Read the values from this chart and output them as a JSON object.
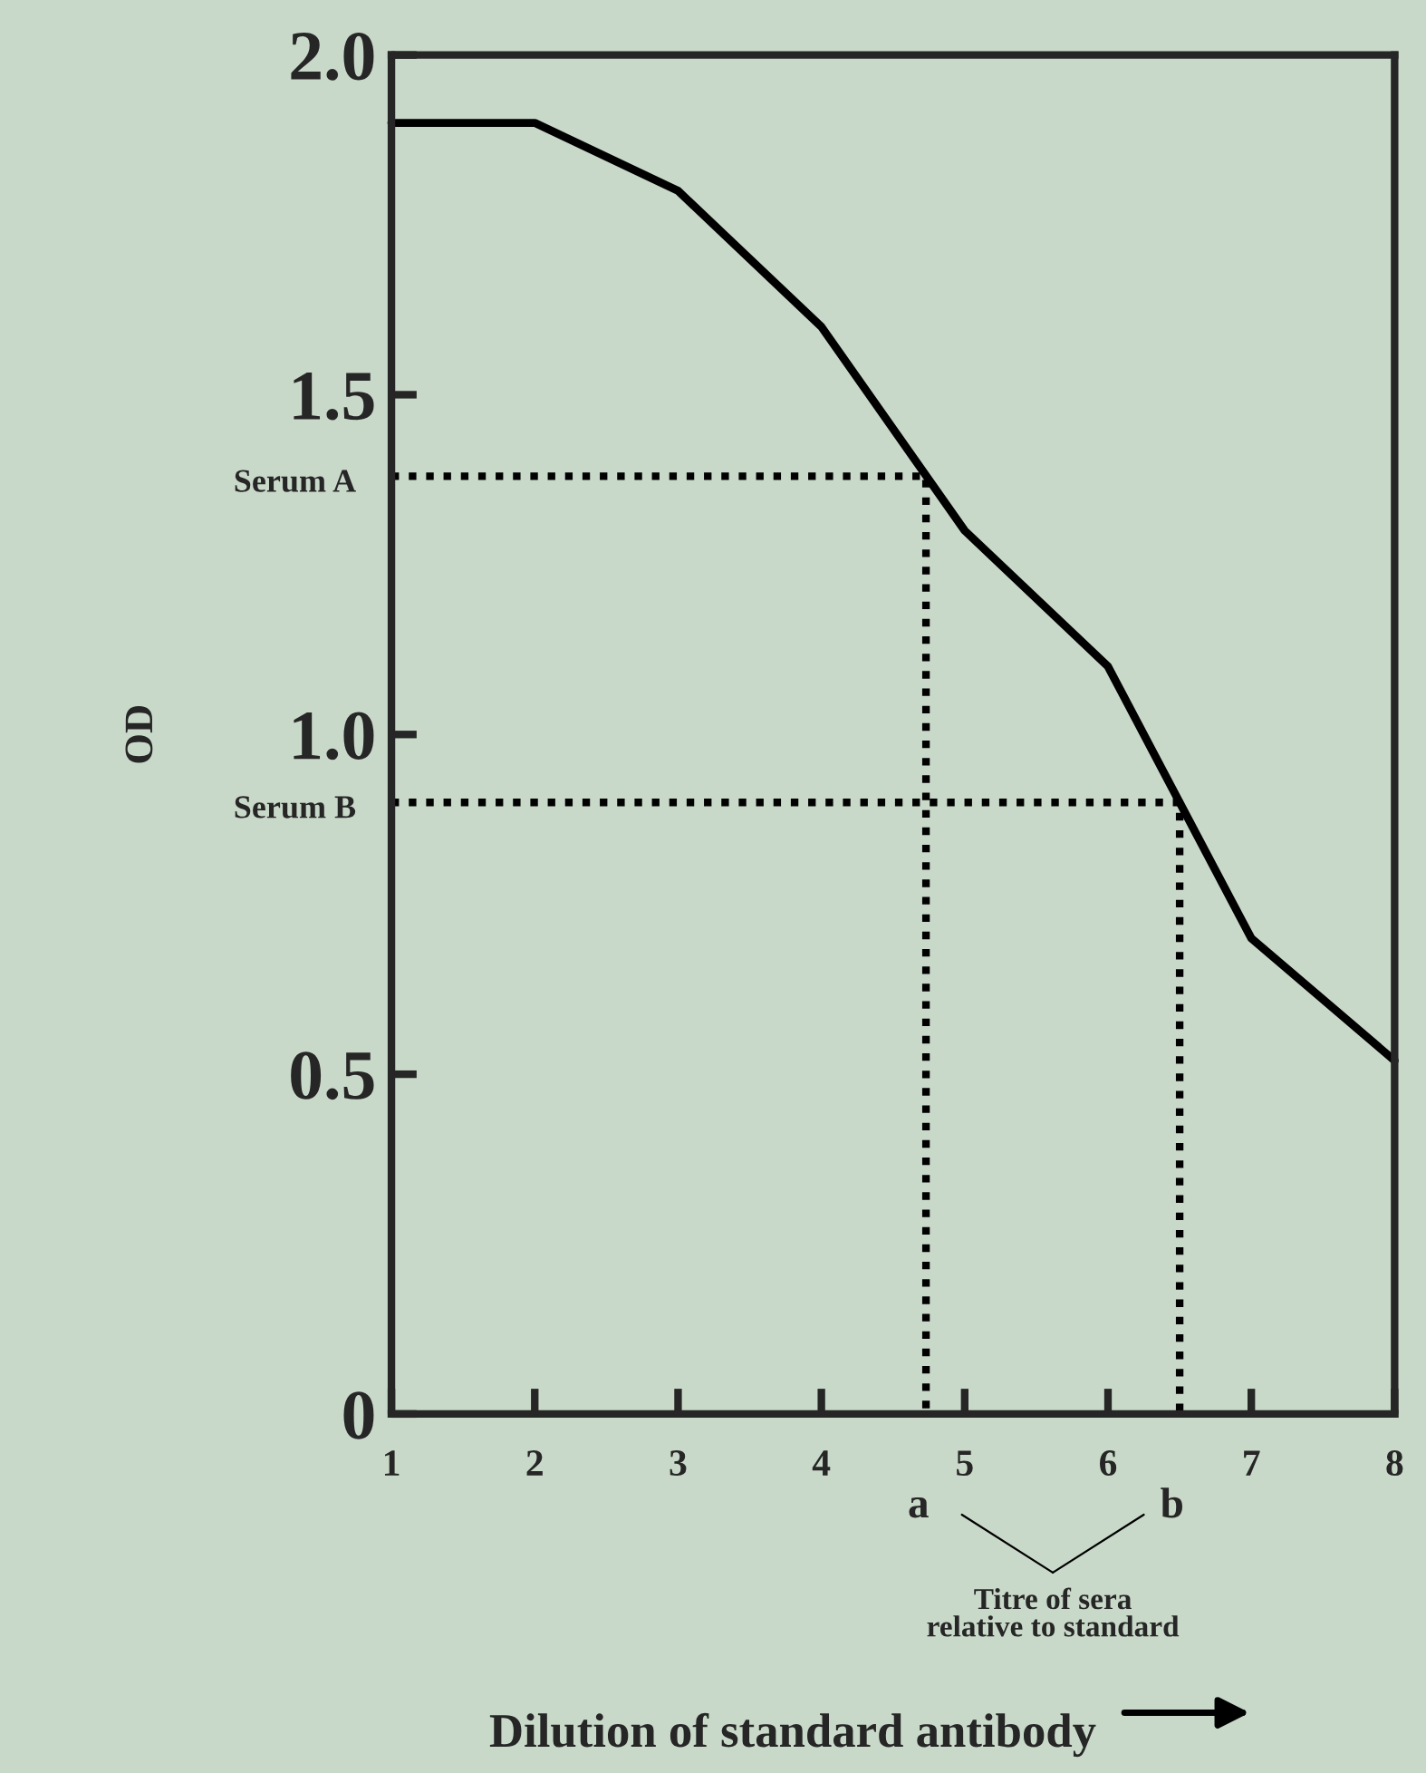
{
  "chart_data": {
    "type": "line",
    "xlabel": "Dilution of standard antibody",
    "ylabel": "OD",
    "x": [
      1,
      2,
      3,
      4,
      5,
      6,
      7,
      8
    ],
    "series": [
      {
        "color": "#000000",
        "values": [
          1.9,
          1.9,
          1.8,
          1.6,
          1.3,
          1.1,
          0.7,
          0.52
        ],
        "line_style": "solid"
      },
      {
        "name": "Serum A",
        "color": "#000000",
        "x": [
          1,
          4.73,
          4.73
        ],
        "values": [
          1.38,
          1.38,
          0
        ],
        "line_style": "dotted"
      },
      {
        "name": "Serum B",
        "color": "#000000",
        "x": [
          1,
          6.5,
          6.5
        ],
        "values": [
          0.9,
          0.9,
          0
        ],
        "line_style": "dotted"
      }
    ],
    "xlim": [
      1,
      8
    ],
    "ylim": [
      0,
      2
    ],
    "xticks": [
      1,
      2,
      3,
      4,
      5,
      6,
      7,
      8
    ],
    "yticks": [
      0,
      0.5,
      {
        "value": 1,
        "label": "1.0"
      },
      1.5,
      {
        "value": 2,
        "label": "2.0"
      }
    ],
    "marker": "none",
    "grid": false,
    "legend": false,
    "annotations": [
      {
        "text": "a",
        "x": 4.73,
        "y": 0
      },
      {
        "text": "b",
        "x": 6.5,
        "y": 0
      },
      "Titre of sera\nrelative to standard"
    ]
  }
}
